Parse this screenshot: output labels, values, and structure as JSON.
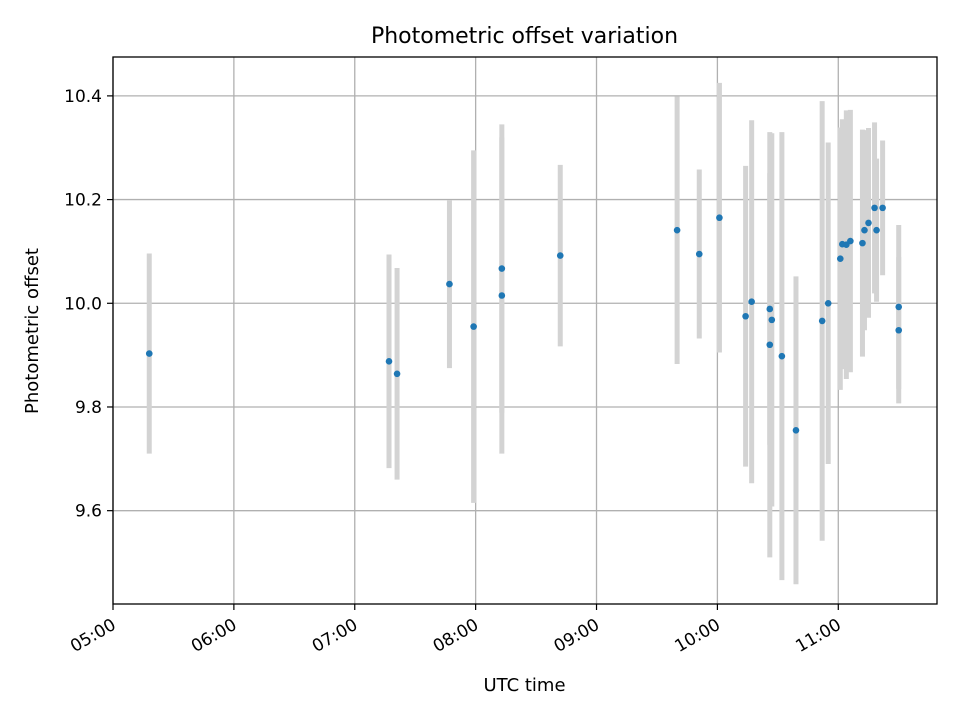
{
  "chart_data": {
    "type": "scatter",
    "title": "Photometric offset variation",
    "xlabel": "UTC time",
    "ylabel": "Photometric offset",
    "x_ticks": [
      "05:00",
      "06:00",
      "07:00",
      "08:00",
      "09:00",
      "10:00",
      "11:00"
    ],
    "y_ticks": [
      "9.6",
      "9.8",
      "10.0",
      "10.2",
      "10.4"
    ],
    "xlim": [
      "05:00",
      "11:49"
    ],
    "ylim": [
      9.42,
      10.475
    ],
    "grid": true,
    "colors": {
      "marker": "#1f77b4",
      "errorbar": "#d3d3d3"
    },
    "points": [
      {
        "x": "05:18",
        "y": 9.903,
        "err": 0.193
      },
      {
        "x": "07:17",
        "y": 9.888,
        "err": 0.206
      },
      {
        "x": "07:21",
        "y": 9.864,
        "err": 0.204
      },
      {
        "x": "07:47",
        "y": 10.037,
        "err": 0.162
      },
      {
        "x": "07:59",
        "y": 9.955,
        "err": 0.34
      },
      {
        "x": "08:13",
        "y": 10.015,
        "err": 0.305
      },
      {
        "x": "08:13",
        "y": 10.067,
        "err": 0.278
      },
      {
        "x": "08:42",
        "y": 10.092,
        "err": 0.175
      },
      {
        "x": "09:40",
        "y": 10.141,
        "err": 0.258
      },
      {
        "x": "09:51",
        "y": 10.095,
        "err": 0.163
      },
      {
        "x": "10:01",
        "y": 10.165,
        "err": 0.26
      },
      {
        "x": "10:14",
        "y": 9.975,
        "err": 0.29
      },
      {
        "x": "10:17",
        "y": 10.003,
        "err": 0.35
      },
      {
        "x": "10:26",
        "y": 9.989,
        "err": 0.262
      },
      {
        "x": "10:26",
        "y": 9.92,
        "err": 0.41
      },
      {
        "x": "10:27",
        "y": 9.968,
        "err": 0.36
      },
      {
        "x": "10:32",
        "y": 9.898,
        "err": 0.432
      },
      {
        "x": "10:39",
        "y": 9.755,
        "err": 0.297
      },
      {
        "x": "10:52",
        "y": 9.966,
        "err": 0.424
      },
      {
        "x": "10:55",
        "y": 10.0,
        "err": 0.31
      },
      {
        "x": "11:01",
        "y": 10.086,
        "err": 0.253
      },
      {
        "x": "11:02",
        "y": 10.114,
        "err": 0.241
      },
      {
        "x": "11:04",
        "y": 10.113,
        "err": 0.259
      },
      {
        "x": "11:06",
        "y": 10.12,
        "err": 0.253
      },
      {
        "x": "11:12",
        "y": 10.116,
        "err": 0.219
      },
      {
        "x": "11:13",
        "y": 10.141,
        "err": 0.193
      },
      {
        "x": "11:15",
        "y": 10.155,
        "err": 0.183
      },
      {
        "x": "11:18",
        "y": 10.184,
        "err": 0.165
      },
      {
        "x": "11:19",
        "y": 10.141,
        "err": 0.138
      },
      {
        "x": "11:22",
        "y": 10.184,
        "err": 0.13
      },
      {
        "x": "11:30",
        "y": 9.993,
        "err": 0.158
      },
      {
        "x": "11:30",
        "y": 9.948,
        "err": 0.141
      }
    ]
  }
}
